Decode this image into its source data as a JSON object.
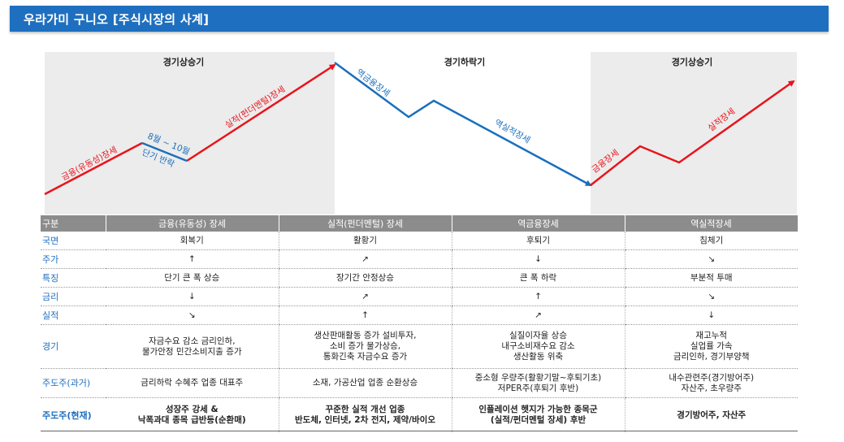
{
  "title": "우라가미 구니오 [주식시장의 사계]",
  "phases": [
    "경기상승기",
    "경기하락기",
    "경기상승기"
  ],
  "curve_labels": {
    "financial_rally": "금융(유동성)장세",
    "aug_oct": "8월 ~ 10월",
    "short_rebound": "단기 반락",
    "earnings_rally": "실적(펀더멘털)장세",
    "reverse_financial": "역금융장세",
    "reverse_earnings": "역실적장세",
    "financial_rally_2": "금융장세",
    "earnings_rally_2": "실적장세"
  },
  "colors": {
    "up": "#e8141c",
    "down": "#1a6fbd",
    "header_bar": "#1e6fbf",
    "table_header": "#8c8c8c",
    "shade": "#ececec"
  },
  "table": {
    "header": [
      "구분",
      "금융(유동성) 장세",
      "실적(펀더멘털) 장세",
      "역금융장세",
      "역실적장세"
    ],
    "rows": [
      {
        "label": "국면",
        "cells": [
          "회복기",
          "활황기",
          "후퇴기",
          "침체기"
        ]
      },
      {
        "label": "주가",
        "cells": [
          "↑",
          "↗",
          "↓",
          "↘"
        ]
      },
      {
        "label": "특징",
        "cells": [
          "단기 큰 폭 상승",
          "장기간 안정상승",
          "큰 폭 하락",
          "부분적 투매"
        ]
      },
      {
        "label": "금리",
        "cells": [
          "↓",
          "↗",
          "↑",
          "↘"
        ]
      },
      {
        "label": "실적",
        "cells": [
          "↘",
          "↑",
          "↗",
          "↓"
        ]
      },
      {
        "label": "경기",
        "cells": [
          [
            "자금수요 감소 금리인하,",
            "물가안정 민간소비지출 증가"
          ],
          [
            "생산판매활동 증가 설비투자,",
            "소비 증가 물가상승,",
            "통화긴축 자금수요 증가"
          ],
          [
            "실질이자율 상승",
            "내구소비재수요 감소",
            "생산활동 위축"
          ],
          [
            "재고누적",
            "실업률 가속",
            "금리인하, 경기부양책"
          ]
        ]
      },
      {
        "label": "주도주(과거)",
        "cells": [
          [
            "금리하락 수혜주 업종 대표주"
          ],
          [
            "소재, 가공산업 업종 순환상승"
          ],
          [
            "중소형 우량주(활황기말~후퇴기초)",
            "저PER주(후퇴기 후반)"
          ],
          [
            "내수관련주(경기방어주)",
            "자산주, 초우량주"
          ]
        ]
      },
      {
        "label": "주도주(현재)",
        "cells": [
          [
            "성장주 강세 &",
            "낙폭과대 종목 급반등(순환매)"
          ],
          [
            "꾸준한 실적 개선 업종",
            "반도체, 인터넷, 2차 전지, 제약/바이오"
          ],
          [
            "인플레이션 헷지가 가능한 종목군",
            "(실적/펀더멘털 장세) 후반"
          ],
          [
            "경기방어주, 자산주"
          ]
        ]
      }
    ]
  }
}
